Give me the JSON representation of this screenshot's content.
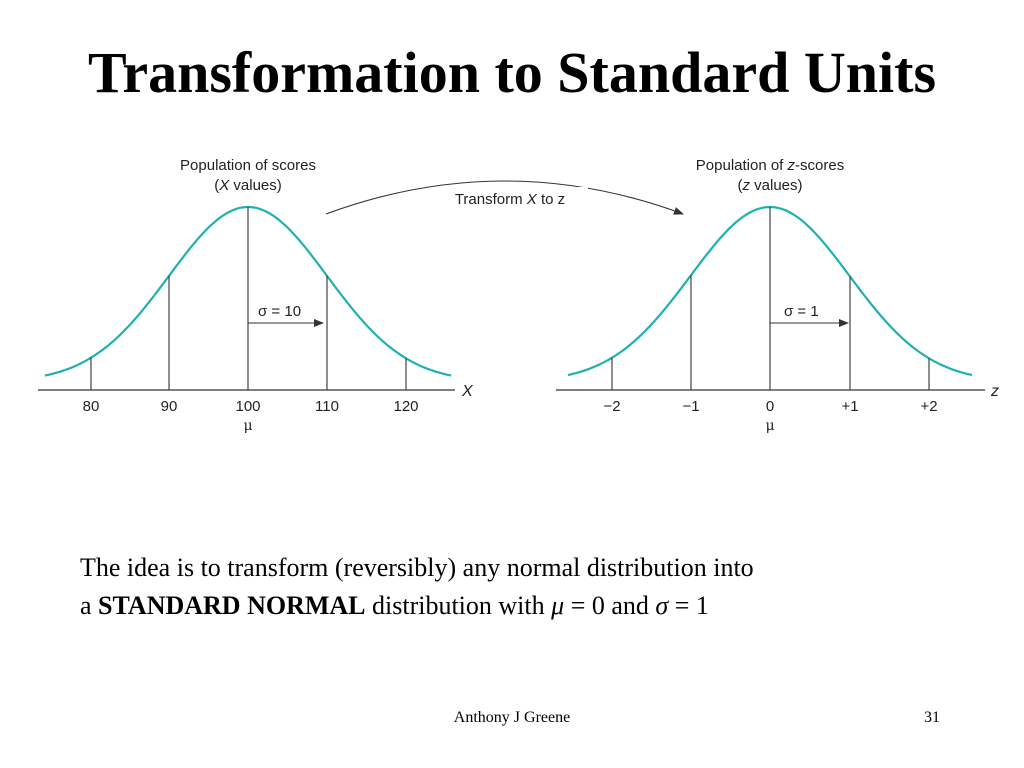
{
  "title": "Transformation to Standard Units",
  "left_panel": {
    "caption_line1": "Population of scores",
    "caption_line2_var": "X",
    "caption_line2_rest": " values)",
    "sigma_label": "σ = 10",
    "axis_name": "X",
    "ticks": [
      "80",
      "90",
      "100",
      "110",
      "120"
    ],
    "mean_symbol": "μ"
  },
  "right_panel": {
    "caption_line1_pre": "Population of ",
    "caption_line1_var": "z",
    "caption_line1_post": "-scores",
    "caption_line2_var": "z",
    "caption_line2_rest": " values)",
    "sigma_label": "σ = 1",
    "axis_name": "z",
    "ticks": [
      "−2",
      "−1",
      "0",
      "+1",
      "+2"
    ],
    "mean_symbol": "μ"
  },
  "transform_arrow": {
    "label_pre": "Transform ",
    "label_var": "X",
    "label_post": " to z"
  },
  "body": {
    "line1": "The idea is to transform (reversibly) any normal distribution into",
    "line2_pre": "a ",
    "line2_bold": "STANDARD NORMAL",
    "line2_mid": " distribution with ",
    "mu_symbol": "μ",
    "mu_eq": " = 0 and ",
    "sigma_symbol": "σ",
    "sigma_eq": " = 1"
  },
  "footer": {
    "author": "Anthony J Greene",
    "page_number": "31"
  },
  "colors": {
    "curve": "#1fb0b0",
    "lines": "#333333",
    "text": "#000000"
  }
}
